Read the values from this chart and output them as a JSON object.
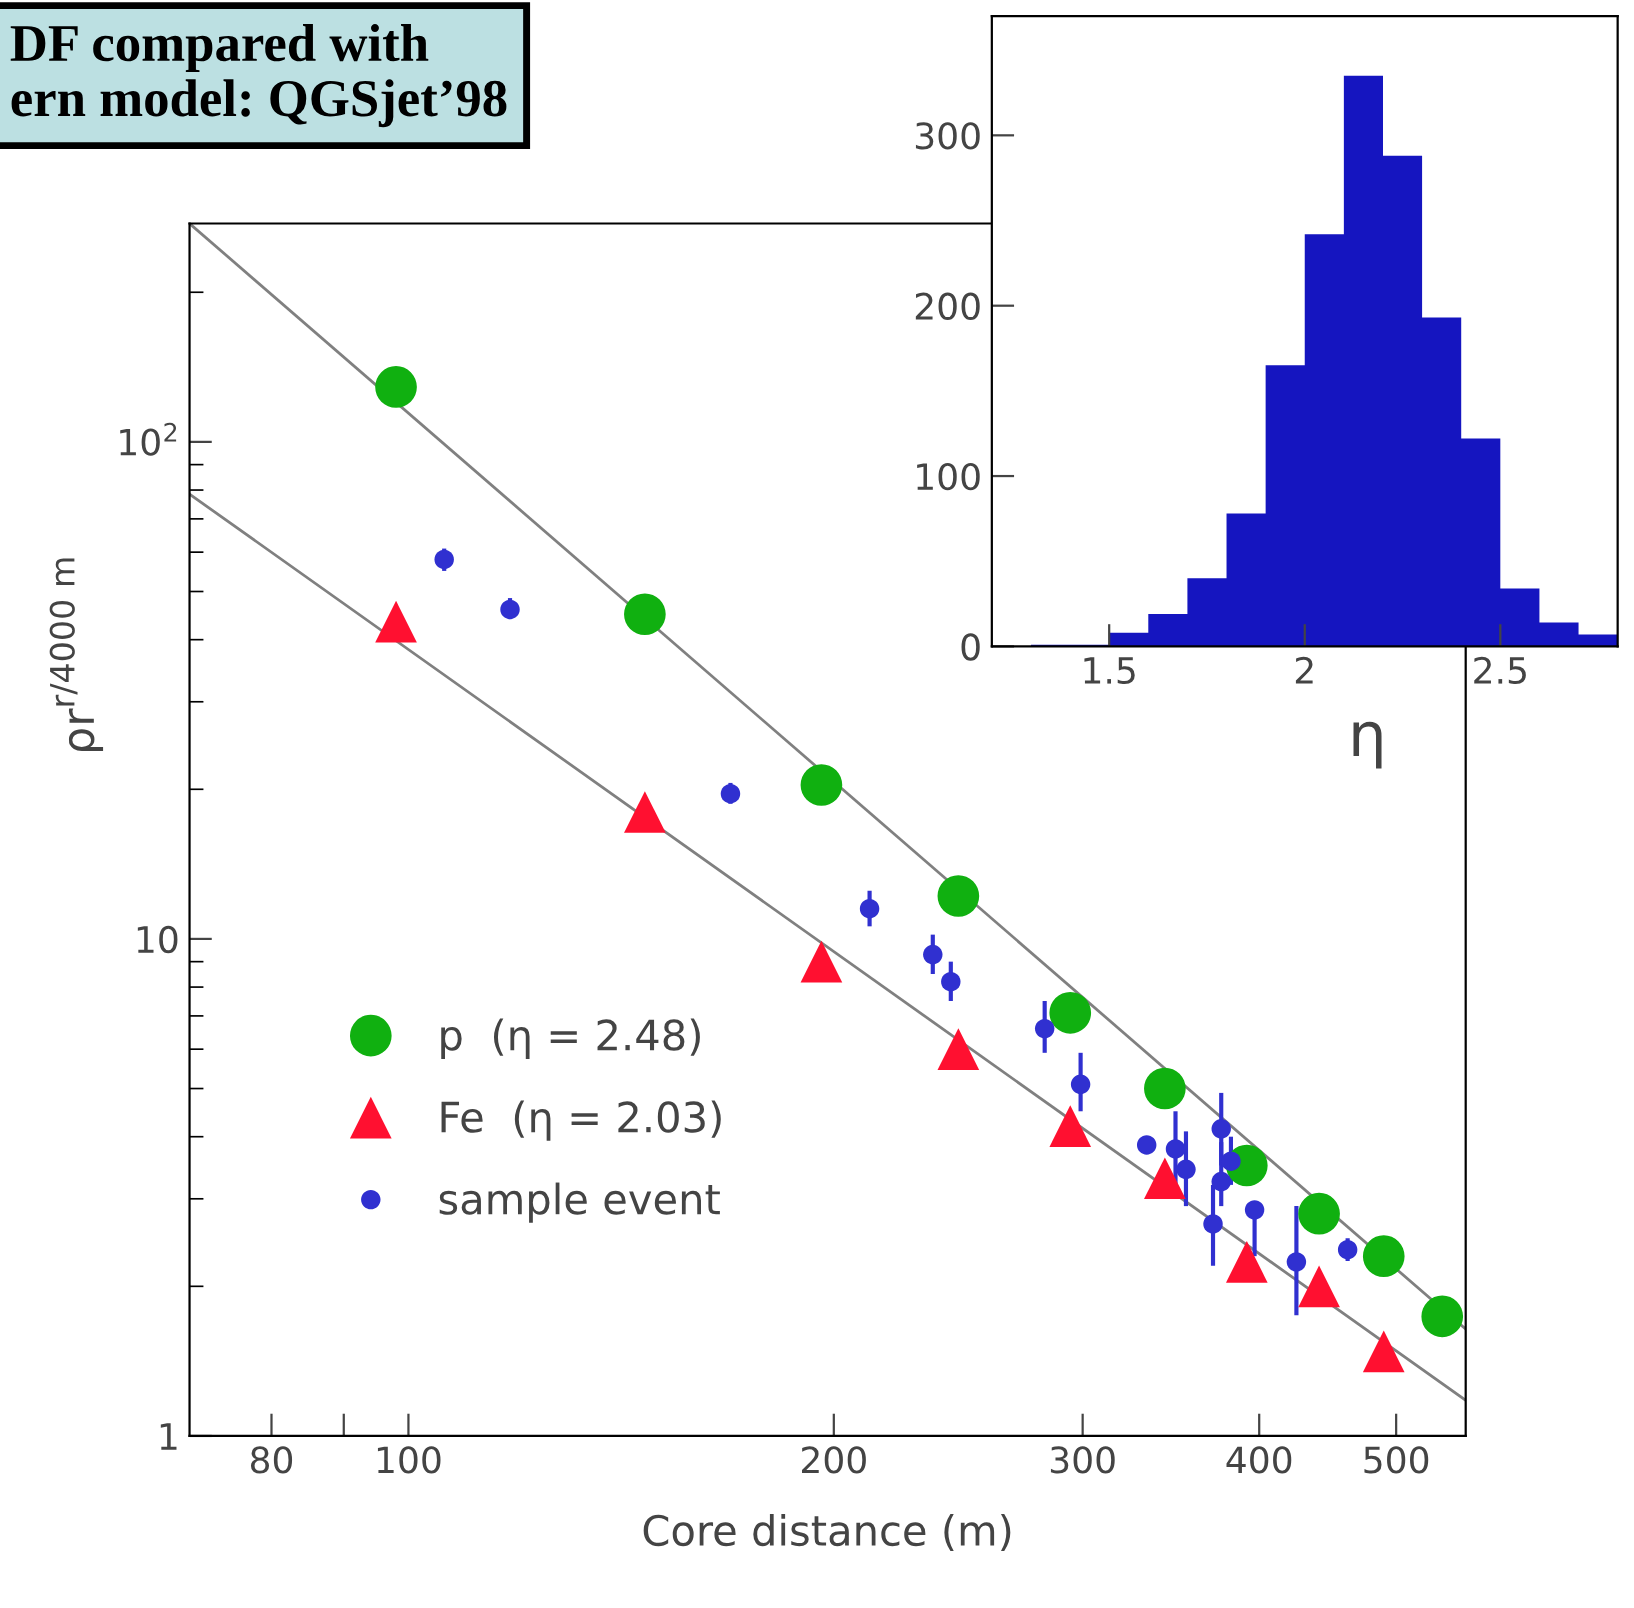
{
  "chart_data": [
    {
      "type": "scatter",
      "title": "DF compared with\nern model: QGSjet’98",
      "xlabel": "Core distance (m)",
      "ylabel": "ρr$^{r/4000 m}$",
      "log": "xy",
      "xlim": [
        70,
        560
      ],
      "ylim": [
        1,
        275
      ],
      "xticks": [
        {
          "value": 80,
          "label": "80"
        },
        {
          "value": 90,
          "label": null
        },
        {
          "value": 100,
          "label": "100"
        },
        {
          "value": 200,
          "label": "200"
        },
        {
          "value": 300,
          "label": "300"
        },
        {
          "value": 400,
          "label": "400"
        },
        {
          "value": 500,
          "label": "500"
        }
      ],
      "yticks": [
        {
          "value": 1,
          "label": "1"
        },
        {
          "value": 10,
          "label": "10"
        },
        {
          "value": 100,
          "label": "10$^{2}$"
        }
      ],
      "legend": "left",
      "grid": false,
      "series": [
        {
          "type": "line",
          "color": "#808080",
          "x": [
            70,
            560
          ],
          "values": [
            275,
            1.64
          ]
        },
        {
          "type": "line",
          "color": "#808080",
          "x": [
            70,
            560
          ],
          "values": [
            78.5,
            1.18
          ]
        },
        {
          "name": "p  (η = 2.48)",
          "color": "#10b010",
          "marker": "circle",
          "x": [
            98,
            147,
            196,
            245,
            294,
            343,
            392,
            441,
            490,
            539
          ],
          "values": [
            129,
            45,
            20.4,
            12.2,
            7.1,
            5.0,
            3.5,
            2.8,
            2.3,
            1.74
          ]
        },
        {
          "name": "Fe  (η = 2.03)",
          "color": "#ff1030",
          "marker": "triangle",
          "x": [
            98,
            147,
            196,
            245,
            294,
            343,
            392,
            441,
            490
          ],
          "values": [
            43.5,
            18,
            9.0,
            6.0,
            4.2,
            3.3,
            2.24,
            2.0,
            1.48
          ]
        },
        {
          "name": "sample event",
          "color": "#3030d0",
          "marker": "circle",
          "x": [
            106,
            118,
            169,
            212,
            235,
            242,
            282,
            299,
            333,
            349,
            355,
            376,
            376,
            382,
            371,
            397,
            425,
            462
          ],
          "values": [
            58,
            46,
            19.6,
            11.5,
            9.3,
            8.2,
            6.6,
            5.1,
            3.85,
            3.78,
            3.44,
            4.15,
            3.25,
            3.57,
            2.67,
            2.85,
            2.24,
            2.37
          ],
          "errors": [
            [
              55,
              61
            ],
            [
              44,
              48.5
            ],
            [
              18.7,
              20.6
            ],
            [
              10.6,
              12.5
            ],
            [
              8.5,
              10.2
            ],
            [
              7.5,
              9.0
            ],
            [
              5.9,
              7.5
            ],
            [
              4.5,
              5.9
            ],
            [
              3.7,
              4.0
            ],
            [
              3.2,
              4.5
            ],
            [
              2.9,
              4.1
            ],
            [
              3.5,
              4.9
            ],
            [
              2.9,
              3.9
            ],
            [
              3.2,
              4.0
            ],
            [
              2.2,
              3.2
            ],
            [
              2.3,
              2.85
            ],
            [
              1.75,
              2.9
            ],
            [
              2.25,
              2.5
            ]
          ]
        }
      ]
    },
    {
      "type": "histogram",
      "xlabel": "η",
      "bins": [
        1.3,
        1.4,
        1.5,
        1.6,
        1.7,
        1.8,
        1.9,
        2.0,
        2.1,
        2.2,
        2.3,
        2.4,
        2.5,
        2.6,
        2.7,
        2.8
      ],
      "values": [
        1,
        1,
        8,
        19,
        40,
        78,
        165,
        242,
        335,
        288,
        193,
        122,
        34,
        14,
        7
      ],
      "color": "#1515c0",
      "xlim": [
        1.2,
        2.8
      ],
      "ylim": [
        0,
        370
      ],
      "xticks": [
        1.5,
        2,
        2.5
      ],
      "yticks": [
        0,
        100,
        200,
        300
      ],
      "grid": false
    }
  ]
}
